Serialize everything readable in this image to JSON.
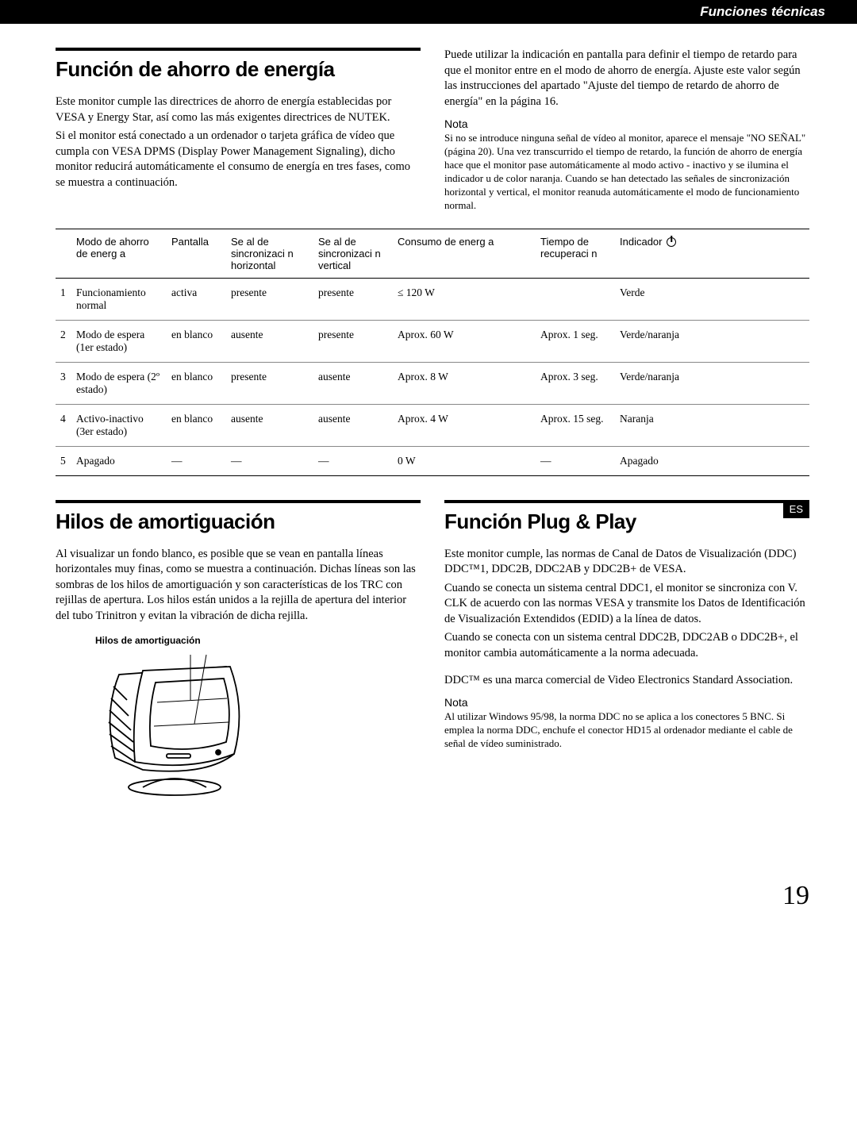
{
  "header": {
    "title": "Funciones técnicas"
  },
  "side_tab": "ES",
  "page_number": "19",
  "section1": {
    "title": "Función de ahorro de energía",
    "p1": "Este monitor cumple las directrices de ahorro de energía establecidas por VESA y Energy Star, así como las más exigentes directrices de NUTEK.",
    "p2": "Si el monitor está conectado a un ordenador o tarjeta gráfica de vídeo que cumpla con VESA DPMS (Display Power Management Signaling), dicho monitor reducirá automáticamente el consumo de energía en tres fases, como se muestra a continuación.",
    "p3": "Puede utilizar la indicación en pantalla para definir el tiempo de retardo para que el monitor entre en el modo de ahorro de energía. Ajuste este valor según las instrucciones del apartado \"Ajuste del tiempo de retardo de ahorro de energía\" en la página 16.",
    "note_label": "Nota",
    "note_text": "Si no se introduce ninguna señal de vídeo al monitor, aparece el mensaje \"NO SEÑAL\" (página 20).  Una vez transcurrido el tiempo de retardo, la función de ahorro de energía hace que el monitor pase automáticamente al modo activo - inactivo y se ilumina el indicador u  de color naranja. Cuando se han detectado las señales de sincronización horizontal y vertical, el monitor reanuda automáticamente el modo de funcionamiento normal."
  },
  "table": {
    "headers": {
      "mode": "Modo de ahorro de energ a",
      "screen": "Pantalla",
      "hsync": "Se al de sincronizaci n horizontal",
      "vsync": "Se al de sincronizaci n vertical",
      "consume": "Consumo de energ a",
      "time": "Tiempo de recuperaci n",
      "indicator": "Indicador"
    },
    "rows": [
      {
        "n": "1",
        "mode": "Funcionamiento normal",
        "screen": "activa",
        "hsync": "presente",
        "vsync": "presente",
        "consume": "≤ 120 W",
        "time": "",
        "ind": "Verde"
      },
      {
        "n": "2",
        "mode": "Modo de espera (1er estado)",
        "screen": "en blanco",
        "hsync": "ausente",
        "vsync": "presente",
        "consume": "Aprox. 60 W",
        "time": "Aprox. 1 seg.",
        "ind": "Verde/naranja"
      },
      {
        "n": "3",
        "mode": "Modo de espera (2º estado)",
        "screen": "en blanco",
        "hsync": "presente",
        "vsync": "ausente",
        "consume": "Aprox. 8 W",
        "time": "Aprox. 3 seg.",
        "ind": "Verde/naranja"
      },
      {
        "n": "4",
        "mode": "Activo-inactivo (3er estado)",
        "screen": "en blanco",
        "hsync": "ausente",
        "vsync": "ausente",
        "consume": "Aprox. 4 W",
        "time": "Aprox. 15 seg.",
        "ind": "Naranja"
      },
      {
        "n": "5",
        "mode": "Apagado",
        "screen": "—",
        "hsync": "—",
        "vsync": "—",
        "consume": "0 W",
        "time": "—",
        "ind": "Apagado"
      }
    ]
  },
  "section2": {
    "title": "Hilos de amortiguación",
    "p1": "Al visualizar un fondo blanco, es posible que se vean en pantalla líneas horizontales muy finas, como se muestra a continuación. Dichas líneas son las sombras de los hilos de amortiguación y son características de los TRC con rejillas de apertura. Los hilos están unidos a la rejilla de apertura del interior del tubo Trinitron y evitan la vibración de dicha rejilla.",
    "caption": "Hilos de amortiguación"
  },
  "section3": {
    "title": "Función Plug & Play",
    "p1": "Este monitor cumple, las normas de Canal de Datos de Visualización (DDC) DDC™1, DDC2B, DDC2AB y DDC2B+ de VESA.",
    "p2": "Cuando se conecta un sistema central DDC1, el monitor se sincroniza con V. CLK de acuerdo con las normas VESA y transmite los Datos de Identificación de Visualización Extendidos (EDID) a la línea de datos.",
    "p3": "Cuando se conecta con un sistema central DDC2B, DDC2AB o DDC2B+, el monitor cambia automáticamente a la norma adecuada.",
    "p4": "DDC™ es una marca comercial de Video Electronics Standard Association.",
    "note_label": "Nota",
    "note_text": "Al utilizar Windows 95/98, la norma DDC no se aplica a los conectores 5 BNC. Si emplea la norma DDC, enchufe el conector HD15 al ordenador mediante el cable de señal de vídeo suministrado."
  }
}
